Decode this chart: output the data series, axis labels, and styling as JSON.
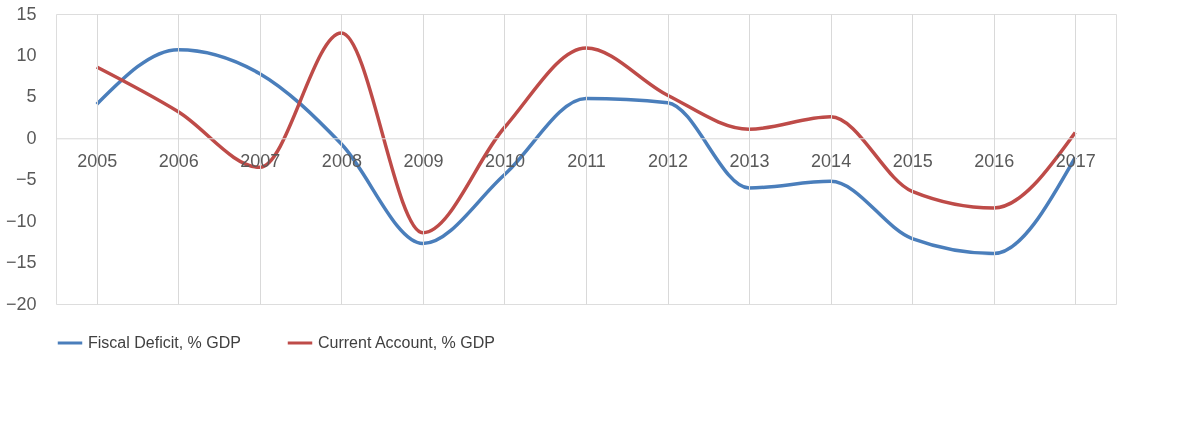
{
  "chart_data": {
    "type": "line",
    "categories": [
      "2005",
      "2006",
      "2007",
      "2008",
      "2009",
      "2010",
      "2011",
      "2012",
      "2013",
      "2014",
      "2015",
      "2016",
      "2017"
    ],
    "series": [
      {
        "name": "Fiscal Deficit, % GDP",
        "color": "#4a7ebb",
        "values": [
          4.1,
          10.7,
          7.8,
          -0.7,
          -12.7,
          -4.4,
          4.8,
          4.3,
          -6.0,
          -5.2,
          -12.1,
          -13.9,
          -2.3
        ]
      },
      {
        "name": "Current Account, % GDP",
        "color": "#be4b48",
        "values": [
          8.6,
          3.2,
          -3.5,
          12.7,
          -11.4,
          1.3,
          10.9,
          5.2,
          1.1,
          2.6,
          -6.4,
          -8.4,
          0.7
        ]
      }
    ],
    "ylim": [
      -20,
      15
    ],
    "yticks": [
      -20,
      -15,
      -10,
      -5,
      0,
      5,
      10,
      15
    ],
    "grid": "x",
    "legend": "bottom",
    "marker": "none",
    "line_style": "solid"
  }
}
